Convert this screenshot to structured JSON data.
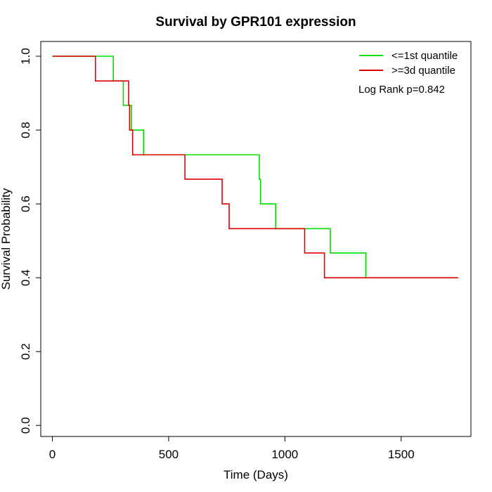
{
  "chart_data": {
    "type": "line",
    "title": "Survival by GPR101 expression",
    "xlabel": "Time (Days)",
    "ylabel": "Survival Probability",
    "xlim": [
      -50,
      1800
    ],
    "ylim": [
      -0.03,
      1.04
    ],
    "x_ticks": [
      0,
      500,
      1000,
      1500
    ],
    "y_ticks": [
      0.0,
      0.2,
      0.4,
      0.6,
      0.8,
      1.0
    ],
    "x_tick_labels": [
      "0",
      "500",
      "1000",
      "1500"
    ],
    "y_tick_labels": [
      "0.0",
      "0.2",
      "0.4",
      "0.6",
      "0.8",
      "1.0"
    ],
    "grid": false,
    "legend_position": "top-right",
    "annotation": "Log Rank p=0.842",
    "series": [
      {
        "name": "<=1st quantile",
        "color": "#00e000",
        "step": true,
        "points": [
          [
            0,
            1.0
          ],
          [
            262,
            1.0
          ],
          [
            262,
            0.933
          ],
          [
            305,
            0.933
          ],
          [
            305,
            0.867
          ],
          [
            340,
            0.867
          ],
          [
            340,
            0.8
          ],
          [
            392,
            0.8
          ],
          [
            392,
            0.733
          ],
          [
            890,
            0.733
          ],
          [
            890,
            0.667
          ],
          [
            895,
            0.667
          ],
          [
            895,
            0.6
          ],
          [
            960,
            0.6
          ],
          [
            960,
            0.533
          ],
          [
            1195,
            0.533
          ],
          [
            1195,
            0.467
          ],
          [
            1348,
            0.467
          ],
          [
            1348,
            0.4
          ]
        ]
      },
      {
        "name": ">=3d quantile",
        "color": "#e00000",
        "step": true,
        "points": [
          [
            0,
            1.0
          ],
          [
            185,
            1.0
          ],
          [
            185,
            0.933
          ],
          [
            328,
            0.933
          ],
          [
            328,
            0.867
          ],
          [
            332,
            0.867
          ],
          [
            332,
            0.8
          ],
          [
            345,
            0.8
          ],
          [
            345,
            0.733
          ],
          [
            570,
            0.733
          ],
          [
            570,
            0.667
          ],
          [
            730,
            0.667
          ],
          [
            730,
            0.6
          ],
          [
            760,
            0.6
          ],
          [
            760,
            0.533
          ],
          [
            1085,
            0.533
          ],
          [
            1085,
            0.467
          ],
          [
            1170,
            0.467
          ],
          [
            1170,
            0.4
          ],
          [
            1745,
            0.4
          ]
        ]
      }
    ]
  }
}
